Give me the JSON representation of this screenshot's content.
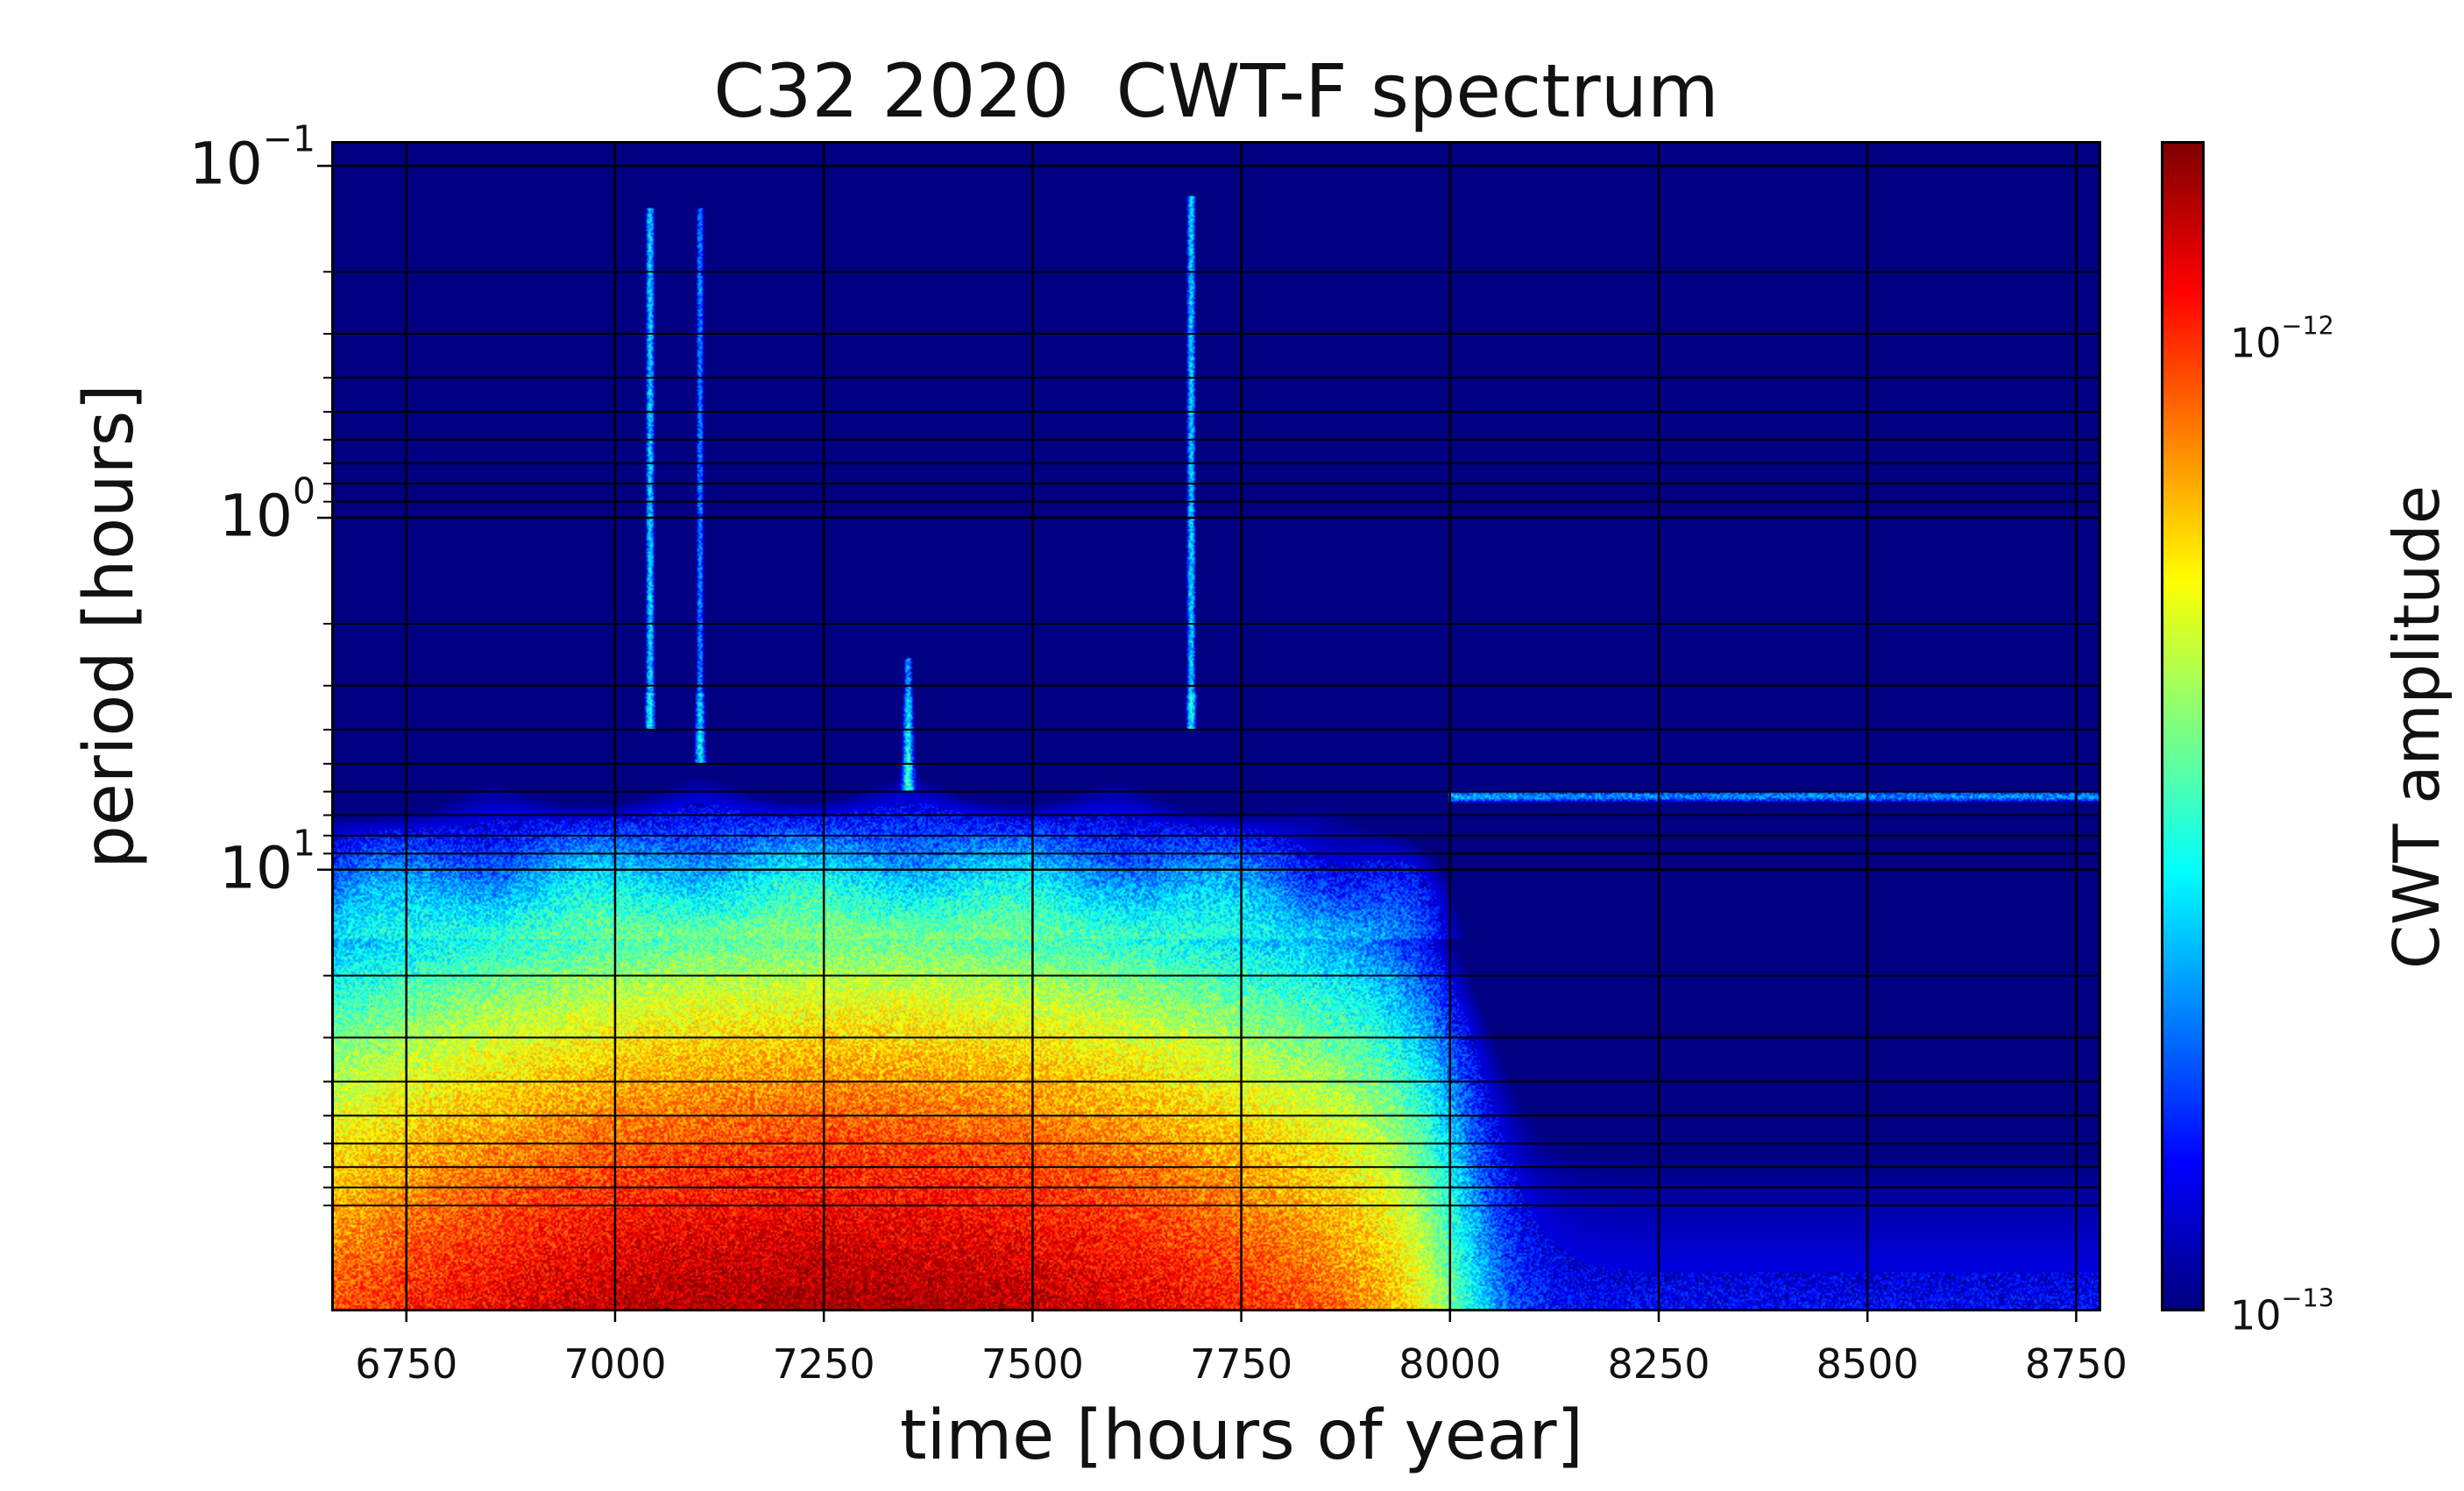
{
  "chart_data": {
    "type": "heatmap",
    "title": "C32 2020  CWT-F spectrum",
    "xlabel": "time [hours of year]",
    "ylabel": "period [hours]",
    "colorbar_label": "CWT amplitude",
    "colormap": "jet",
    "x_range": [
      6660,
      8780
    ],
    "y_range": [
      0.085,
      180
    ],
    "y_scale": "log",
    "y_inverted": true,
    "grid": true,
    "x_ticks": [
      {
        "value": 6750,
        "label": "6750"
      },
      {
        "value": 7000,
        "label": "7000"
      },
      {
        "value": 7250,
        "label": "7250"
      },
      {
        "value": 7500,
        "label": "7500"
      },
      {
        "value": 7750,
        "label": "7750"
      },
      {
        "value": 8000,
        "label": "8000"
      },
      {
        "value": 8250,
        "label": "8250"
      },
      {
        "value": 8500,
        "label": "8500"
      },
      {
        "value": 8750,
        "label": "8750"
      }
    ],
    "y_ticks": [
      {
        "value": 0.1,
        "base": "10",
        "exp": "−1"
      },
      {
        "value": 1,
        "base": "10",
        "exp": "0"
      },
      {
        "value": 10,
        "base": "10",
        "exp": "1"
      }
    ],
    "y_minor_ticks": [
      0.2,
      0.3,
      0.4,
      0.5,
      0.6,
      0.7,
      0.8,
      0.9,
      2,
      3,
      4,
      5,
      6,
      7,
      8,
      9,
      20,
      30,
      40,
      50,
      60,
      70,
      80,
      90
    ],
    "colorbar_scale": "log",
    "colorbar_range": [
      1e-13,
      1.6e-12
    ],
    "colorbar_ticks": [
      {
        "value": 1e-12,
        "base": "10",
        "exp": "−12"
      },
      {
        "value": 1e-13,
        "base": "10",
        "exp": "−13"
      }
    ],
    "features": [
      {
        "kind": "vertical_streak",
        "time": 7040,
        "period_range": [
          0.13,
          4
        ],
        "amplitude": 2.5e-13
      },
      {
        "kind": "vertical_streak",
        "time": 7100,
        "period_range": [
          0.13,
          5
        ],
        "amplitude": 2e-13
      },
      {
        "kind": "vertical_streak",
        "time": 7690,
        "period_range": [
          0.12,
          4
        ],
        "amplitude": 2.5e-13
      },
      {
        "kind": "vertical_streak",
        "time": 7350,
        "period_range": [
          2.5,
          6
        ],
        "amplitude": 2.2e-13
      },
      {
        "kind": "horizontal_band",
        "period": 6.2,
        "time_range": [
          8000,
          8780
        ],
        "amplitude": 2e-13
      },
      {
        "kind": "high_amplitude_region",
        "period_range": [
          20,
          180
        ],
        "time_range": [
          6660,
          8000
        ],
        "peak_time": 7150,
        "peak_period": 90,
        "amplitude": 1.5e-12
      }
    ]
  }
}
